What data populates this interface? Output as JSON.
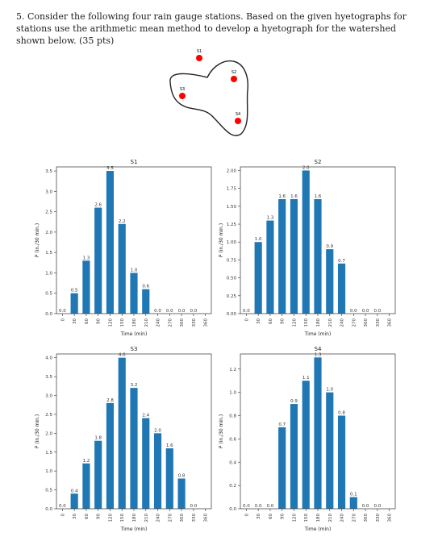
{
  "problem": {
    "text": "5. Consider the following four rain gauge stations. Based on the given hyetographs for stations use the arithmetic mean method to develop a hyetograph for the watershed shown below. (35 pts)"
  },
  "map": {
    "stations": [
      {
        "label": "S1"
      },
      {
        "label": "S2"
      },
      {
        "label": "S3"
      },
      {
        "label": "S4"
      }
    ],
    "marker_color": "#ff0000"
  },
  "chart_data": [
    {
      "type": "bar",
      "title": "S1",
      "xlabel": "Time (min)",
      "ylabel": "P (in./30 min.)",
      "categories": [
        "0",
        "30",
        "60",
        "90",
        "120",
        "150",
        "180",
        "210",
        "240",
        "270",
        "300",
        "330",
        "360"
      ],
      "values": [
        0.0,
        0.5,
        1.3,
        2.6,
        3.5,
        2.2,
        1.0,
        0.6,
        0.0,
        0.0,
        0.0,
        0.0,
        null
      ],
      "data_labels": [
        "0.0",
        "0.5",
        "1.3",
        "2.6",
        "3.5",
        "2.2",
        "1.0",
        "0.6",
        "0.0",
        "0.0",
        "0.0",
        "0.0",
        ""
      ],
      "yticks": [
        "0.0",
        "0.5",
        "1.0",
        "1.5",
        "2.0",
        "2.5",
        "3.0",
        "3.5"
      ],
      "ylim": [
        0,
        3.6
      ],
      "bar_color": "#1f77b4"
    },
    {
      "type": "bar",
      "title": "S2",
      "xlabel": "Time (min)",
      "ylabel": "P (in./30 min.)",
      "categories": [
        "0",
        "30",
        "60",
        "90",
        "120",
        "150",
        "180",
        "210",
        "240",
        "270",
        "300",
        "330",
        "360"
      ],
      "values": [
        0.0,
        1.0,
        1.3,
        1.6,
        1.6,
        2.0,
        1.6,
        0.9,
        0.7,
        0.0,
        0.0,
        0.0,
        null
      ],
      "data_labels": [
        "0.0",
        "1.0",
        "1.3",
        "1.6",
        "1.6",
        "2.0",
        "1.6",
        "0.9",
        "0.7",
        "0.0",
        "0.0",
        "0.0",
        ""
      ],
      "yticks": [
        "0.00",
        "0.25",
        "0.50",
        "0.75",
        "1.00",
        "1.25",
        "1.50",
        "1.75",
        "2.00"
      ],
      "ylim": [
        0,
        2.05
      ],
      "bar_color": "#1f77b4"
    },
    {
      "type": "bar",
      "title": "S3",
      "xlabel": "Time (min)",
      "ylabel": "P (in./30 min.)",
      "categories": [
        "0",
        "30",
        "60",
        "90",
        "120",
        "150",
        "180",
        "210",
        "240",
        "270",
        "300",
        "330",
        "360"
      ],
      "values": [
        0.0,
        0.4,
        1.2,
        1.8,
        2.8,
        4.0,
        3.2,
        2.4,
        2.0,
        1.6,
        0.8,
        0.0,
        null
      ],
      "data_labels": [
        "0.0",
        "0.4",
        "1.2",
        "1.8",
        "2.8",
        "4.0",
        "3.2",
        "2.4",
        "2.0",
        "1.6",
        "0.8",
        "0.0",
        ""
      ],
      "yticks": [
        "0.0",
        "0.5",
        "1.0",
        "1.5",
        "2.0",
        "2.5",
        "3.0",
        "3.5",
        "4.0"
      ],
      "ylim": [
        0,
        4.1
      ],
      "bar_color": "#1f77b4"
    },
    {
      "type": "bar",
      "title": "S4",
      "xlabel": "Time (min)",
      "ylabel": "P (in./30 min.)",
      "categories": [
        "0",
        "30",
        "60",
        "90",
        "120",
        "150",
        "180",
        "210",
        "240",
        "270",
        "300",
        "330",
        "360"
      ],
      "values": [
        0.0,
        0.0,
        0.0,
        0.7,
        0.9,
        1.1,
        1.3,
        1.0,
        0.8,
        0.1,
        0.0,
        0.0,
        null
      ],
      "data_labels": [
        "0.0",
        "0.0",
        "0.0",
        "0.7",
        "0.9",
        "1.1",
        "1.3",
        "1.0",
        "0.8",
        "0.1",
        "0.0",
        "0.0",
        ""
      ],
      "yticks": [
        "0.0",
        "0.2",
        "0.4",
        "0.6",
        "0.8",
        "1.0",
        "1.2"
      ],
      "ylim": [
        0,
        1.33
      ],
      "bar_color": "#1f77b4"
    }
  ]
}
